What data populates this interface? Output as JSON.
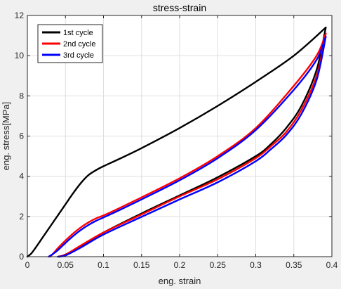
{
  "chart_data": {
    "type": "line",
    "title": "stress-strain",
    "xlabel": "eng. strain",
    "ylabel": "eng. stress[MPa]",
    "xlim": [
      0,
      0.4
    ],
    "ylim": [
      0,
      12
    ],
    "xticks": [
      0,
      0.05,
      0.1,
      0.15,
      0.2,
      0.25,
      0.3,
      0.35,
      0.4
    ],
    "xtick_labels": [
      "0",
      "0.05",
      "0.1",
      "0.15",
      "0.2",
      "0.25",
      "0.3",
      "0.35",
      "0.4"
    ],
    "yticks": [
      0,
      2,
      4,
      6,
      8,
      10,
      12
    ],
    "ytick_labels": [
      "0",
      "2",
      "4",
      "6",
      "8",
      "10",
      "12"
    ],
    "grid": true,
    "legend_position": "top-left",
    "series": [
      {
        "name": "1st cycle",
        "color": "#000000",
        "loading": {
          "x": [
            0,
            0.005,
            0.01,
            0.02,
            0.03,
            0.04,
            0.05,
            0.06,
            0.07,
            0.08,
            0.09,
            0.1,
            0.12,
            0.15,
            0.2,
            0.25,
            0.3,
            0.35,
            0.392
          ],
          "y": [
            0,
            0.15,
            0.4,
            0.95,
            1.5,
            2.05,
            2.6,
            3.15,
            3.65,
            4.05,
            4.3,
            4.5,
            4.85,
            5.4,
            6.4,
            7.5,
            8.7,
            10.0,
            11.4
          ]
        },
        "unloading": {
          "x": [
            0.392,
            0.38,
            0.36,
            0.34,
            0.32,
            0.3,
            0.25,
            0.2,
            0.15,
            0.1,
            0.07,
            0.05,
            0.042
          ],
          "y": [
            11.4,
            9.3,
            7.5,
            6.4,
            5.6,
            5.0,
            3.95,
            3.05,
            2.15,
            1.2,
            0.5,
            0.1,
            0
          ]
        }
      },
      {
        "name": "2nd cycle",
        "color": "#ff0000",
        "loading": {
          "x": [
            0.03,
            0.035,
            0.04,
            0.05,
            0.06,
            0.07,
            0.08,
            0.09,
            0.1,
            0.12,
            0.15,
            0.2,
            0.25,
            0.3,
            0.35,
            0.38,
            0.392
          ],
          "y": [
            0,
            0.2,
            0.42,
            0.8,
            1.15,
            1.45,
            1.7,
            1.9,
            2.05,
            2.4,
            2.95,
            3.9,
            5.0,
            6.4,
            8.5,
            10.0,
            11.1
          ]
        },
        "unloading": {
          "x": [
            0.392,
            0.38,
            0.36,
            0.34,
            0.32,
            0.3,
            0.25,
            0.2,
            0.15,
            0.1,
            0.07,
            0.05,
            0.04
          ],
          "y": [
            11.1,
            9.0,
            7.3,
            6.2,
            5.5,
            4.9,
            3.85,
            3.0,
            2.1,
            1.2,
            0.55,
            0.1,
            0
          ]
        }
      },
      {
        "name": "3rd cycle",
        "color": "#0000ff",
        "loading": {
          "x": [
            0.028,
            0.033,
            0.04,
            0.05,
            0.06,
            0.07,
            0.08,
            0.09,
            0.1,
            0.12,
            0.15,
            0.2,
            0.25,
            0.3,
            0.35,
            0.38,
            0.392
          ],
          "y": [
            0,
            0.12,
            0.32,
            0.68,
            1.02,
            1.32,
            1.57,
            1.78,
            1.95,
            2.3,
            2.85,
            3.8,
            4.9,
            6.3,
            8.3,
            9.8,
            10.95
          ]
        },
        "unloading": {
          "x": [
            0.392,
            0.38,
            0.36,
            0.34,
            0.32,
            0.3,
            0.25,
            0.2,
            0.15,
            0.1,
            0.07,
            0.05,
            0.04
          ],
          "y": [
            10.95,
            8.8,
            7.1,
            6.05,
            5.35,
            4.75,
            3.7,
            2.85,
            1.98,
            1.1,
            0.45,
            0.06,
            0
          ]
        }
      }
    ]
  }
}
